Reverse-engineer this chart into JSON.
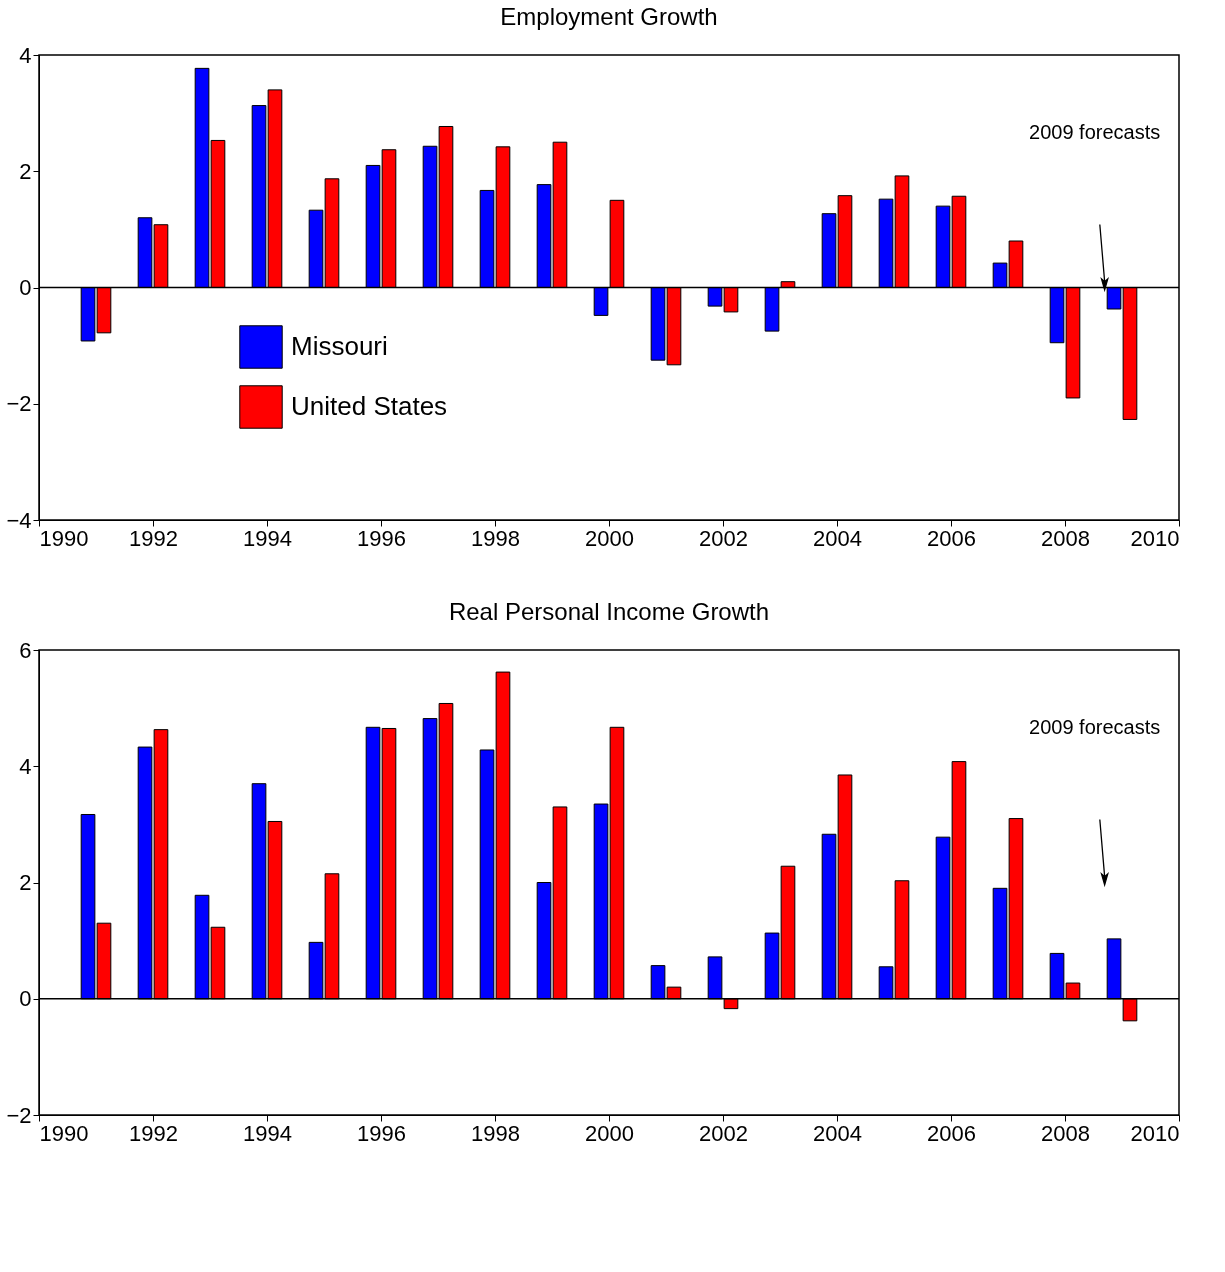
{
  "chart_data": [
    {
      "type": "bar",
      "title": "Employment Growth",
      "x": [
        1991,
        1992,
        1993,
        1994,
        1995,
        1996,
        1997,
        1998,
        1999,
        2000,
        2001,
        2002,
        2003,
        2004,
        2005,
        2006,
        2007,
        2008,
        2009
      ],
      "series": [
        {
          "name": "Missouri",
          "color": "#0000ff",
          "values": [
            -0.92,
            1.2,
            3.77,
            3.13,
            1.33,
            2.1,
            2.43,
            1.67,
            1.77,
            -0.48,
            -1.25,
            -0.32,
            -0.75,
            1.27,
            1.52,
            1.4,
            0.42,
            -0.95,
            -0.37
          ]
        },
        {
          "name": "United States",
          "color": "#ff0000",
          "values": [
            -0.78,
            1.08,
            2.53,
            3.4,
            1.87,
            2.37,
            2.77,
            2.42,
            2.5,
            1.5,
            -1.33,
            -0.42,
            0.1,
            1.58,
            1.92,
            1.57,
            0.8,
            -1.9,
            -2.27
          ]
        }
      ],
      "xlim": [
        1990,
        2010
      ],
      "xticks": [
        1990,
        1992,
        1994,
        1996,
        1998,
        2000,
        2002,
        2004,
        2006,
        2008,
        2010
      ],
      "ylim": [
        -4,
        4
      ],
      "yticks": [
        -4,
        -2,
        0,
        2,
        4
      ],
      "ref_lines": [
        {
          "axis": "y",
          "value": 0
        }
      ],
      "annotations": [
        "2009 forecasts"
      ],
      "legend": "left",
      "grid": false
    },
    {
      "type": "bar",
      "title": "Real Personal Income Growth",
      "x": [
        1991,
        1992,
        1993,
        1994,
        1995,
        1996,
        1997,
        1998,
        1999,
        2000,
        2001,
        2002,
        2003,
        2004,
        2005,
        2006,
        2007,
        2008,
        2009
      ],
      "series": [
        {
          "color": "#0000ff",
          "values": [
            3.17,
            4.33,
            1.78,
            3.7,
            0.97,
            4.67,
            4.82,
            4.28,
            2.0,
            3.35,
            0.57,
            0.72,
            1.13,
            2.83,
            0.55,
            2.78,
            1.9,
            0.78,
            1.03
          ]
        },
        {
          "color": "#ff0000",
          "values": [
            1.3,
            4.63,
            1.23,
            3.05,
            2.15,
            4.65,
            5.08,
            5.62,
            3.3,
            4.67,
            0.2,
            -0.17,
            2.28,
            3.85,
            2.03,
            4.08,
            3.1,
            0.27,
            -0.38
          ]
        }
      ],
      "xlim": [
        1990,
        2010
      ],
      "xticks": [
        1990,
        1992,
        1994,
        1996,
        1998,
        2000,
        2002,
        2004,
        2006,
        2008,
        2010
      ],
      "ylim": [
        -2,
        6
      ],
      "yticks": [
        -2,
        0,
        2,
        4,
        6
      ],
      "ref_lines": [
        {
          "axis": "y",
          "value": 0
        }
      ],
      "annotations": [
        "2009 forecasts"
      ],
      "legend": false,
      "grid": false
    }
  ]
}
